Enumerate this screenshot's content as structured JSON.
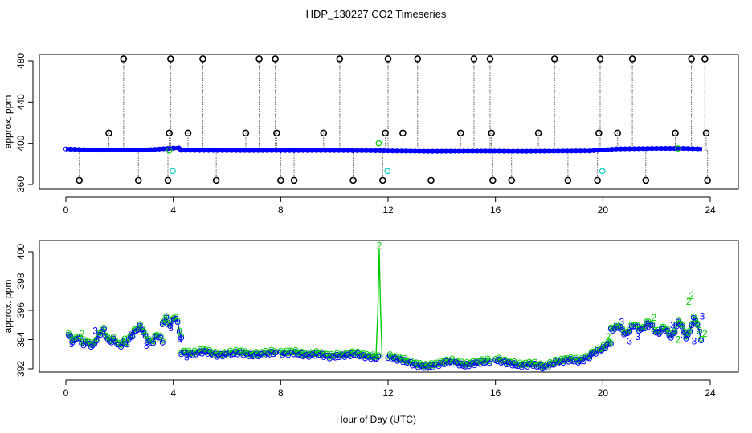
{
  "title": "HDP_130227  CO2 Timeseries",
  "xlabel": "Hour of Day (UTC)",
  "colors": {
    "black_points": "#000000",
    "blue_points": "#0000ff",
    "green_points": "#00cc00",
    "cyan_points": "#00cccc",
    "axis": "#000000"
  },
  "chart_data": [
    {
      "type": "scatter",
      "name": "top-panel",
      "ylabel": "approx. ppm",
      "xlim": [
        0,
        24
      ],
      "ylim": [
        360,
        480
      ],
      "x_ticks": [
        0,
        4,
        8,
        12,
        16,
        20,
        24
      ],
      "y_ticks": [
        360,
        400,
        440,
        480
      ],
      "high_outliers_x": [
        2.15,
        3.9,
        5.1,
        7.2,
        7.8,
        10.2,
        12.0,
        13.1,
        15.2,
        15.8,
        18.2,
        19.9,
        21.1,
        23.3,
        23.8
      ],
      "high_outlier_y": 482,
      "mid_outliers_x": [
        1.6,
        3.85,
        4.55,
        6.7,
        7.85,
        9.6,
        11.9,
        12.55,
        14.7,
        15.85,
        17.6,
        19.85,
        20.55,
        22.7,
        23.85
      ],
      "mid_outlier_y": 410,
      "low_outliers_x": [
        0.5,
        2.7,
        3.8,
        5.6,
        8.0,
        8.5,
        10.7,
        11.8,
        13.6,
        15.9,
        16.6,
        18.7,
        19.8,
        21.6,
        23.9
      ],
      "low_outlier_y": 364,
      "green_points": [
        [
          11.65,
          400
        ],
        [
          3.85,
          393
        ],
        [
          22.8,
          395
        ]
      ],
      "cyan_points": [
        [
          3.98,
          373
        ],
        [
          11.98,
          373
        ],
        [
          19.98,
          373
        ]
      ],
      "trace": [
        [
          0,
          394.5
        ],
        [
          1,
          393.5
        ],
        [
          2,
          393.5
        ],
        [
          3,
          393.5
        ],
        [
          3.8,
          395
        ],
        [
          4.2,
          395.5
        ],
        [
          4.3,
          393.2
        ],
        [
          6,
          393
        ],
        [
          8,
          393
        ],
        [
          10,
          393
        ],
        [
          11.7,
          392.8
        ],
        [
          12,
          392.6
        ],
        [
          13.5,
          392.2
        ],
        [
          15.8,
          392.4
        ],
        [
          17,
          392.2
        ],
        [
          19.5,
          392.6
        ],
        [
          20,
          393.5
        ],
        [
          20.5,
          394.5
        ],
        [
          22,
          395
        ],
        [
          23,
          395
        ],
        [
          23.7,
          394.5
        ]
      ]
    },
    {
      "type": "scatter",
      "name": "bottom-panel",
      "ylabel": "approx. ppm",
      "xlim": [
        0,
        24
      ],
      "ylim": [
        392,
        400
      ],
      "x_ticks": [
        0,
        4,
        8,
        12,
        16,
        20,
        24
      ],
      "y_ticks": [
        392,
        394,
        396,
        398,
        400
      ],
      "segments": [
        {
          "x0": 0.1,
          "x1": 1.0,
          "ys": [
            394.3,
            393.8,
            394.2,
            393.6,
            393.9,
            393.2
          ]
        },
        {
          "x0": 1.0,
          "x1": 2.2,
          "ys": [
            393.5,
            394.2,
            394.7,
            393.8,
            394.0,
            393.5,
            393.9
          ]
        },
        {
          "x0": 2.2,
          "x1": 3.6,
          "ys": [
            393.6,
            394.1,
            394.6,
            394.9,
            394.0,
            393.7,
            394.3,
            393.9
          ]
        },
        {
          "x0": 3.6,
          "x1": 4.3,
          "ys": [
            395.1,
            395.4,
            394.9,
            395.5,
            395.2,
            394.0
          ]
        },
        {
          "x0": 4.3,
          "x1": 7.8,
          "ys": [
            393.1,
            393.0,
            393.2,
            392.9,
            393.0,
            393.1,
            392.9,
            393.0,
            393.1
          ]
        },
        {
          "x0": 8.0,
          "x1": 11.7,
          "ys": [
            393.0,
            393.1,
            392.9,
            393.0,
            392.8,
            392.9,
            393.0,
            392.8,
            392.7
          ]
        },
        {
          "x0": 12.0,
          "x1": 15.8,
          "ys": [
            392.8,
            392.6,
            392.3,
            392.1,
            392.3,
            392.5,
            392.2,
            392.4,
            392.5
          ]
        },
        {
          "x0": 16.0,
          "x1": 19.6,
          "ys": [
            392.6,
            392.4,
            392.2,
            392.3,
            392.1,
            392.4,
            392.6,
            392.5,
            392.9
          ]
        },
        {
          "x0": 19.6,
          "x1": 20.3,
          "ys": [
            393.0,
            393.3,
            393.8
          ]
        },
        {
          "x0": 20.3,
          "x1": 23.7,
          "ys": [
            394.6,
            394.9,
            394.3,
            395.0,
            394.6,
            395.2,
            394.4,
            394.8,
            394.1,
            395.3,
            394.0,
            395.6,
            393.8
          ]
        }
      ],
      "spike": [
        [
          11.55,
          392.8
        ],
        [
          11.62,
          396
        ],
        [
          11.67,
          400.2
        ],
        [
          11.72,
          396
        ],
        [
          11.78,
          392.8
        ]
      ],
      "labels_3": [
        [
          0.2,
          393.7
        ],
        [
          1.1,
          394.6
        ],
        [
          2.4,
          394.3
        ],
        [
          3.0,
          393.6
        ],
        [
          3.9,
          394.8
        ],
        [
          4.5,
          392.8
        ],
        [
          20.7,
          395.2
        ],
        [
          21.3,
          394.2
        ],
        [
          21.7,
          394.9
        ],
        [
          22.1,
          394.4
        ],
        [
          22.6,
          395.0
        ],
        [
          23.0,
          394.3
        ],
        [
          23.4,
          393.9
        ],
        [
          23.7,
          395.6
        ],
        [
          21.0,
          393.9
        ]
      ],
      "labels_2": [
        [
          11.67,
          400.4
        ],
        [
          0.6,
          394.4
        ],
        [
          3.7,
          395.4
        ],
        [
          20.2,
          394.2
        ],
        [
          21.9,
          395.5
        ],
        [
          22.8,
          394.0
        ],
        [
          23.2,
          396.6
        ],
        [
          23.5,
          395.1
        ],
        [
          23.8,
          394.4
        ],
        [
          23.3,
          397.0
        ]
      ],
      "labels_4": [
        [
          4.25,
          394.0
        ]
      ]
    }
  ]
}
